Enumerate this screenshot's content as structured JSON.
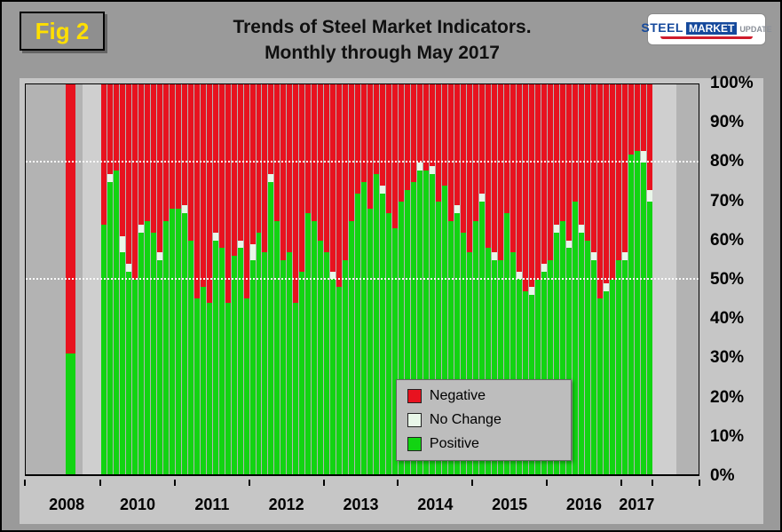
{
  "header": {
    "fig_label": "Fig 2",
    "title_line1": "Trends of Steel Market Indicators.",
    "title_line2": "Monthly through  May 2017",
    "logo": {
      "steel": "STEEL",
      "market": "MARKET",
      "update": "UPDATE"
    }
  },
  "colors": {
    "negative": "#e8121f",
    "no_change": "#e9f7e9",
    "positive": "#12d412",
    "plot_background": "#b3b3b3",
    "panel_background": "#c6c6c6",
    "page_background": "#9a9a9a",
    "fig_label_text": "#ffdf00"
  },
  "legend": {
    "items": [
      {
        "label": "Negative",
        "color": "#e8121f"
      },
      {
        "label": "No Change",
        "color": "#e9f7e9"
      },
      {
        "label": "Positive",
        "color": "#12d412"
      }
    ]
  },
  "y_axis": {
    "ticks": [
      "100%",
      "90%",
      "80%",
      "70%",
      "60%",
      "50%",
      "40%",
      "30%",
      "20%",
      "10%",
      "0%"
    ]
  },
  "x_axis": {
    "labels": [
      "2008",
      "2010",
      "2011",
      "2012",
      "2013",
      "2014",
      "2015",
      "2016",
      "2017"
    ]
  },
  "chart_data": {
    "type": "bar",
    "stacked": true,
    "unit": "%",
    "ylim": [
      0,
      100
    ],
    "gridlines": [
      50,
      80
    ],
    "title": "Trends of Steel Market Indicators. Monthly through May 2017",
    "bar_2008": {
      "year": "2008",
      "positive": 31,
      "no_change": 0,
      "negative": 69
    },
    "monthly": {
      "months_per_year": {
        "2010": 12,
        "2011": 12,
        "2012": 12,
        "2013": 12,
        "2014": 12,
        "2015": 12,
        "2016": 12,
        "2017": 5
      },
      "series": [
        {
          "name": "Positive",
          "color": "#12d412",
          "values": [
            64,
            75,
            78,
            57,
            52,
            50,
            62,
            65,
            62,
            55,
            65,
            68,
            68,
            67,
            60,
            45,
            48,
            44,
            60,
            58,
            44,
            56,
            58,
            45,
            55,
            62,
            57,
            75,
            65,
            55,
            57,
            44,
            52,
            67,
            65,
            60,
            57,
            50,
            48,
            55,
            65,
            72,
            75,
            68,
            77,
            72,
            67,
            63,
            70,
            73,
            75,
            78,
            78,
            77,
            70,
            74,
            65,
            67,
            62,
            57,
            65,
            70,
            58,
            55,
            55,
            67,
            57,
            50,
            47,
            46,
            50,
            52,
            55,
            62,
            65,
            58,
            70,
            62,
            60,
            55,
            45,
            47,
            50,
            55,
            55,
            82,
            83,
            80,
            70
          ]
        },
        {
          "name": "No Change",
          "color": "#e9f7e9",
          "values": [
            0,
            2,
            0,
            4,
            2,
            0,
            2,
            0,
            0,
            2,
            0,
            0,
            0,
            2,
            0,
            0,
            0,
            0,
            2,
            0,
            0,
            0,
            2,
            0,
            4,
            0,
            0,
            2,
            0,
            0,
            0,
            0,
            0,
            0,
            0,
            0,
            0,
            2,
            0,
            0,
            0,
            0,
            0,
            0,
            0,
            2,
            0,
            0,
            0,
            0,
            0,
            2,
            0,
            2,
            0,
            0,
            0,
            2,
            0,
            0,
            0,
            2,
            0,
            2,
            0,
            0,
            0,
            2,
            0,
            2,
            0,
            2,
            0,
            2,
            0,
            2,
            0,
            2,
            0,
            2,
            0,
            2,
            0,
            0,
            2,
            0,
            0,
            3,
            3
          ]
        },
        {
          "name": "Negative",
          "color": "#e8121f",
          "values": "computed as 100 - positive - no_change"
        }
      ]
    }
  }
}
